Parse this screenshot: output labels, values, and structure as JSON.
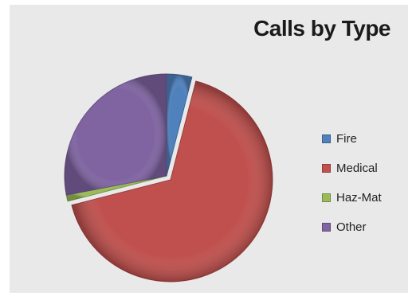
{
  "chart_data": {
    "type": "pie",
    "title": "Calls by Type",
    "categories": [
      "Fire",
      "Medical",
      "Haz-Mat",
      "Other"
    ],
    "values": [
      4,
      67,
      1,
      28
    ],
    "colors": [
      "#4f81bd",
      "#c0504d",
      "#9bbb59",
      "#8064a2"
    ],
    "legend": "right",
    "explode": "Medical"
  }
}
